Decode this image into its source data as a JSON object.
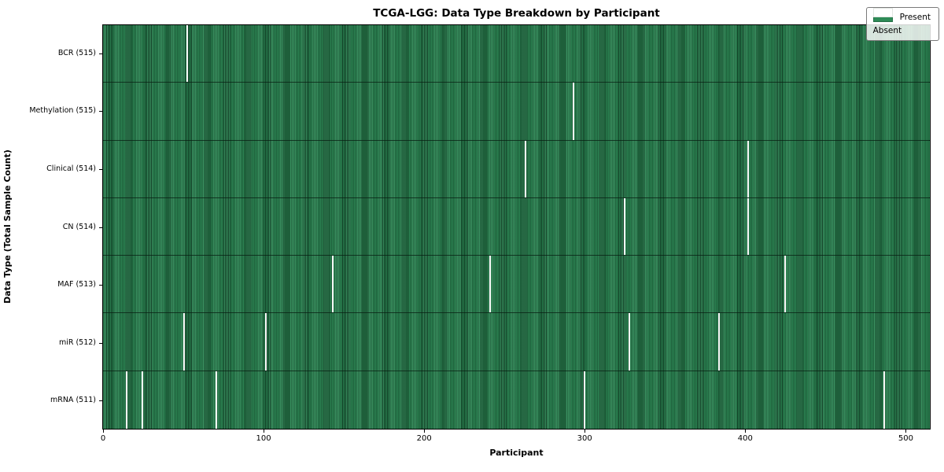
{
  "title": "TCGA-LGG: Data Type Breakdown by Participant",
  "xlabel": "Participant",
  "ylabel": "Data Type (Total Sample Count)",
  "legend": {
    "present_label": "Present",
    "absent_label": "Absent"
  },
  "colors": {
    "present": "#2e8b57",
    "present_edge": "#14432a",
    "absent": "#f7f7f7",
    "row_divider": "#10301f",
    "spine": "#000000",
    "legend_bg": "rgba(255,255,255,0.82)",
    "legend_border": "#7a7a7a"
  },
  "chart_data": {
    "type": "heatmap",
    "title": "TCGA-LGG: Data Type Breakdown by Participant",
    "xlabel": "Participant",
    "ylabel": "Data Type (Total Sample Count)",
    "legend_entries": [
      "Present",
      "Absent"
    ],
    "legend_position": "upper right",
    "n_participants": 516,
    "x_ticks": [
      0,
      100,
      200,
      300,
      400,
      500
    ],
    "x_range": [
      -0.5,
      515.5
    ],
    "rows": [
      {
        "label": "BCR",
        "count": 515,
        "tick_label": "BCR (515)",
        "absent_participants": [
          52
        ]
      },
      {
        "label": "Methylation",
        "count": 515,
        "tick_label": "Methylation (515)",
        "absent_participants": [
          293
        ]
      },
      {
        "label": "Clinical",
        "count": 514,
        "tick_label": "Clinical (514)",
        "absent_participants": [
          263,
          402
        ]
      },
      {
        "label": "CN",
        "count": 514,
        "tick_label": "CN (514)",
        "absent_participants": [
          325,
          402
        ]
      },
      {
        "label": "MAF",
        "count": 513,
        "tick_label": "MAF (513)",
        "absent_participants": [
          143,
          241,
          425
        ]
      },
      {
        "label": "miR",
        "count": 512,
        "tick_label": "miR (512)",
        "absent_participants": [
          50,
          101,
          328,
          384
        ]
      },
      {
        "label": "mRNA",
        "count": 511,
        "tick_label": "mRNA (511)",
        "absent_participants": [
          14,
          24,
          70,
          300,
          487
        ]
      }
    ]
  }
}
